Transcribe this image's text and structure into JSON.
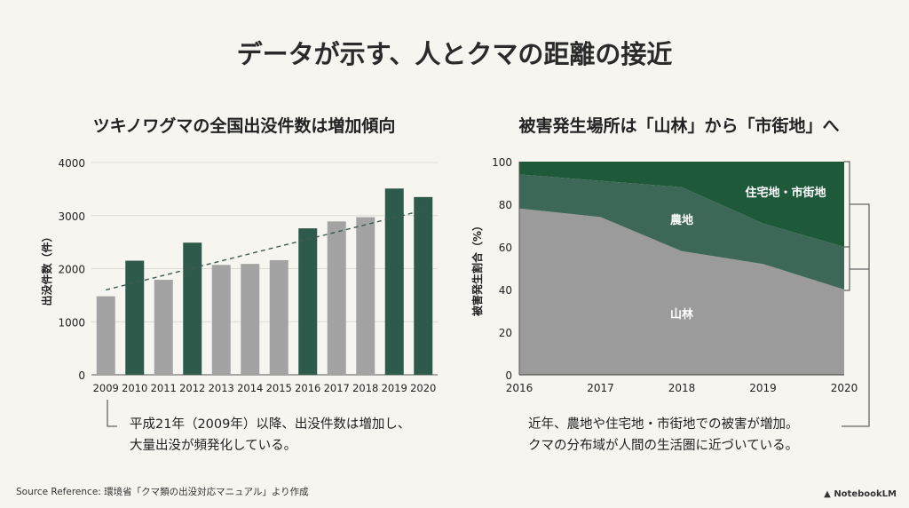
{
  "title": "データが示す、人とクマの距離の接近",
  "chart_data": [
    {
      "type": "bar",
      "title": "ツキノワグマの全国出没件数は増加傾向",
      "xlabel": "",
      "ylabel": "出没件数（件）",
      "ylim": [
        0,
        4000
      ],
      "yticks": [
        "0",
        "1000",
        "2000",
        "3000",
        "4000"
      ],
      "grid": true,
      "categories": [
        "2009",
        "2010",
        "2011",
        "2012",
        "2013",
        "2014",
        "2015",
        "2016",
        "2017",
        "2018",
        "2019",
        "2020"
      ],
      "values": [
        1480,
        2150,
        1790,
        2490,
        2070,
        2090,
        2160,
        2760,
        2890,
        2970,
        3510,
        3350
      ],
      "highlighted": [
        false,
        true,
        false,
        true,
        false,
        false,
        false,
        true,
        false,
        false,
        true,
        true
      ],
      "trendline": {
        "start": 1600,
        "end": 3100,
        "style": "dashed"
      },
      "colors": {
        "highlight": "#2d5a4b",
        "normal": "#a3a3a3",
        "trend": "#3d5a50"
      }
    },
    {
      "type": "area",
      "stacked": true,
      "title": "被害発生場所は「山林」から「市街地」へ",
      "ylabel": "被害発生割合（%）",
      "ylim": [
        0,
        100
      ],
      "yticks": [
        "0",
        "20",
        "40",
        "60",
        "80",
        "100"
      ],
      "x": [
        "2016",
        "2017",
        "2018",
        "2019",
        "2020"
      ],
      "series": [
        {
          "name": "山林",
          "values": [
            78,
            74,
            58,
            52,
            40
          ],
          "color": "#9b9b9b"
        },
        {
          "name": "農地",
          "values": [
            16,
            17,
            30,
            19,
            20
          ],
          "color": "#3d6857"
        },
        {
          "name": "住宅地・市街地",
          "values": [
            6,
            9,
            12,
            29,
            40
          ],
          "color": "#1e5a3a"
        }
      ]
    }
  ],
  "notes": {
    "left": [
      "平成21年（2009年）以降、出没件数は増加し、",
      "大量出没が頻発化している。"
    ],
    "right": [
      "近年、農地や住宅地・市街地での被害が増加。",
      "クマの分布域が人間の生活圏に近づいている。"
    ]
  },
  "footer": {
    "source": "Source Reference: 環境省「クマ類の出没対応マニュアル」より作成",
    "brand": "NotebookLM"
  }
}
